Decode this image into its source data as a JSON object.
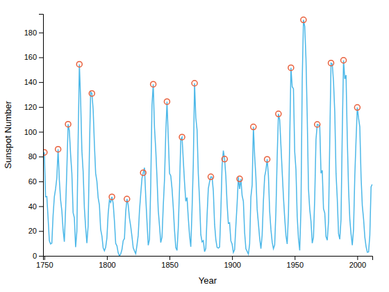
{
  "chart_data": {
    "type": "line",
    "xlabel": "Year",
    "ylabel": "Sunspot Number",
    "xlim": [
      1749,
      2012
    ],
    "ylim": [
      0,
      195
    ],
    "xticks": [
      1750,
      1800,
      1850,
      1900,
      1950,
      2000
    ],
    "yticks": [
      0,
      20,
      40,
      60,
      80,
      100,
      120,
      140,
      160,
      180
    ],
    "grid": false,
    "series": [
      {
        "type": "line",
        "color": "#4db8e8",
        "line_style": "solid",
        "x": [
          1749,
          1750,
          1751,
          1752,
          1753,
          1754,
          1755,
          1756,
          1757,
          1758,
          1759,
          1760,
          1761,
          1762,
          1763,
          1764,
          1765,
          1766,
          1767,
          1768,
          1769,
          1770,
          1771,
          1772,
          1773,
          1774,
          1775,
          1776,
          1777,
          1778,
          1779,
          1780,
          1781,
          1782,
          1783,
          1784,
          1785,
          1786,
          1787,
          1788,
          1789,
          1790,
          1791,
          1792,
          1793,
          1794,
          1795,
          1796,
          1797,
          1798,
          1799,
          1800,
          1801,
          1802,
          1803,
          1804,
          1805,
          1806,
          1807,
          1808,
          1809,
          1810,
          1811,
          1812,
          1813,
          1814,
          1815,
          1816,
          1817,
          1818,
          1819,
          1820,
          1821,
          1822,
          1823,
          1824,
          1825,
          1826,
          1827,
          1828,
          1829,
          1830,
          1831,
          1832,
          1833,
          1834,
          1835,
          1836,
          1837,
          1838,
          1839,
          1840,
          1841,
          1842,
          1843,
          1844,
          1845,
          1846,
          1847,
          1848,
          1849,
          1850,
          1851,
          1852,
          1853,
          1854,
          1855,
          1856,
          1857,
          1858,
          1859,
          1860,
          1861,
          1862,
          1863,
          1864,
          1865,
          1866,
          1867,
          1868,
          1869,
          1870,
          1871,
          1872,
          1873,
          1874,
          1875,
          1876,
          1877,
          1878,
          1879,
          1880,
          1881,
          1882,
          1883,
          1884,
          1885,
          1886,
          1887,
          1888,
          1889,
          1890,
          1891,
          1892,
          1893,
          1894,
          1895,
          1896,
          1897,
          1898,
          1899,
          1900,
          1901,
          1902,
          1903,
          1904,
          1905,
          1906,
          1907,
          1908,
          1909,
          1910,
          1911,
          1912,
          1913,
          1914,
          1915,
          1916,
          1917,
          1918,
          1919,
          1920,
          1921,
          1922,
          1923,
          1924,
          1925,
          1926,
          1927,
          1928,
          1929,
          1930,
          1931,
          1932,
          1933,
          1934,
          1935,
          1936,
          1937,
          1938,
          1939,
          1940,
          1941,
          1942,
          1943,
          1944,
          1945,
          1946,
          1947,
          1948,
          1949,
          1950,
          1951,
          1952,
          1953,
          1954,
          1955,
          1956,
          1957,
          1958,
          1959,
          1960,
          1961,
          1962,
          1963,
          1964,
          1965,
          1966,
          1967,
          1968,
          1969,
          1970,
          1971,
          1972,
          1973,
          1974,
          1975,
          1976,
          1977,
          1978,
          1979,
          1980,
          1981,
          1982,
          1983,
          1984,
          1985,
          1986,
          1987,
          1988,
          1989,
          1990,
          1991,
          1992,
          1993,
          1994,
          1995,
          1996,
          1997,
          1998,
          1999,
          2000,
          2001,
          2002,
          2003,
          2004,
          2005,
          2006,
          2007,
          2008,
          2009,
          2010,
          2011,
          2012
        ],
        "values": [
          80.9,
          83.4,
          47.7,
          47.8,
          30.7,
          12.2,
          9.6,
          10.2,
          32.4,
          47.6,
          54.0,
          62.9,
          85.9,
          61.2,
          45.1,
          36.4,
          20.9,
          11.4,
          37.8,
          69.8,
          106.1,
          100.8,
          81.6,
          66.5,
          34.8,
          30.6,
          7.0,
          19.8,
          92.5,
          154.4,
          125.9,
          84.8,
          68.1,
          38.5,
          22.8,
          10.2,
          24.1,
          82.9,
          132.0,
          130.9,
          118.1,
          89.9,
          66.6,
          60.0,
          46.9,
          41.0,
          21.3,
          16.0,
          6.4,
          4.1,
          6.8,
          14.5,
          34.0,
          45.0,
          43.1,
          47.5,
          42.2,
          28.1,
          10.1,
          8.1,
          2.5,
          0.0,
          1.4,
          5.0,
          12.2,
          13.9,
          35.4,
          45.8,
          41.1,
          30.4,
          23.9,
          15.7,
          6.6,
          4.0,
          1.8,
          8.5,
          16.6,
          36.3,
          49.7,
          62.5,
          67.0,
          71.0,
          47.8,
          27.5,
          8.5,
          13.2,
          56.9,
          121.5,
          138.3,
          103.2,
          85.8,
          63.2,
          36.8,
          24.2,
          10.7,
          15.0,
          40.1,
          61.5,
          98.5,
          124.3,
          95.8,
          66.5,
          64.5,
          54.2,
          39.0,
          20.6,
          6.7,
          4.3,
          22.8,
          54.8,
          93.8,
          95.7,
          77.2,
          59.1,
          44.0,
          47.0,
          30.5,
          16.3,
          7.3,
          37.3,
          73.9,
          139.1,
          111.2,
          101.7,
          66.3,
          44.7,
          17.1,
          11.3,
          12.3,
          3.4,
          6.0,
          32.3,
          54.3,
          59.7,
          63.7,
          63.5,
          52.2,
          25.4,
          13.1,
          6.8,
          6.3,
          7.1,
          35.6,
          73.0,
          84.9,
          78.0,
          64.0,
          41.8,
          26.2,
          26.7,
          12.1,
          9.5,
          2.7,
          5.0,
          24.4,
          42.0,
          63.5,
          53.8,
          62.0,
          48.5,
          43.9,
          18.6,
          5.7,
          3.6,
          1.4,
          9.6,
          47.4,
          57.1,
          103.9,
          80.6,
          63.6,
          37.6,
          26.1,
          14.2,
          5.8,
          16.7,
          44.3,
          63.9,
          69.0,
          77.8,
          64.9,
          35.7,
          21.2,
          11.1,
          5.7,
          8.7,
          36.1,
          79.7,
          114.4,
          109.6,
          88.8,
          67.8,
          47.5,
          30.6,
          16.3,
          9.6,
          33.2,
          92.6,
          151.6,
          136.3,
          134.7,
          83.9,
          69.4,
          31.5,
          13.9,
          4.4,
          38.0,
          141.7,
          190.2,
          184.8,
          159.0,
          112.3,
          53.9,
          37.5,
          27.9,
          10.2,
          15.1,
          47.0,
          93.8,
          105.9,
          105.5,
          104.5,
          66.6,
          68.9,
          38.0,
          34.5,
          15.5,
          12.6,
          27.5,
          92.5,
          155.4,
          154.6,
          140.4,
          115.9,
          66.6,
          45.9,
          17.9,
          13.4,
          29.4,
          100.2,
          157.6,
          142.6,
          145.7,
          94.3,
          54.6,
          29.9,
          17.5,
          8.6,
          21.5,
          64.3,
          93.3,
          119.6,
          111.0,
          104.0,
          63.7,
          40.4,
          29.8,
          15.2,
          7.5,
          2.9,
          3.1,
          16.5,
          55.7,
          57.6
        ]
      },
      {
        "type": "scatter",
        "color": "#e8603c",
        "marker": "circle",
        "x": [
          1750,
          1761,
          1769,
          1778,
          1788,
          1804,
          1816,
          1829,
          1837,
          1848,
          1860,
          1870,
          1883,
          1894,
          1906,
          1917,
          1928,
          1937,
          1947,
          1957,
          1968,
          1979,
          1989,
          2000
        ],
        "values": [
          83.4,
          85.9,
          106.1,
          154.4,
          130.9,
          47.5,
          45.8,
          67.0,
          138.3,
          124.3,
          95.7,
          139.1,
          63.7,
          78.0,
          62.0,
          103.9,
          77.8,
          114.4,
          151.6,
          190.2,
          105.9,
          155.4,
          157.6,
          119.6
        ]
      }
    ]
  }
}
